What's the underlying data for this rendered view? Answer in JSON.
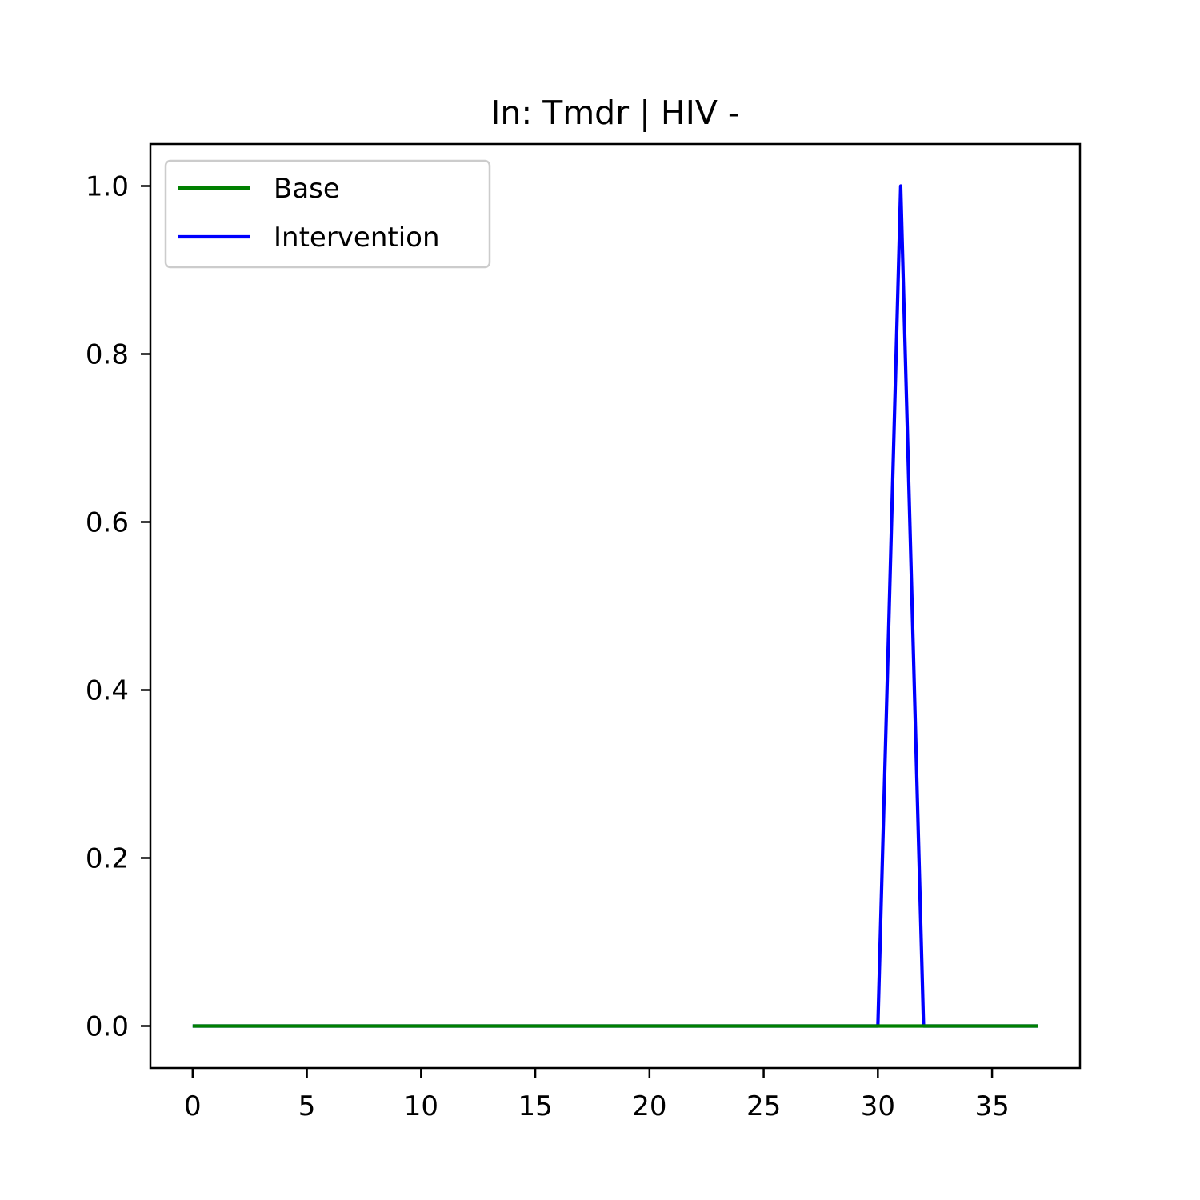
{
  "chart_data": {
    "type": "line",
    "title": "In: Tmdr | HIV -",
    "xlabel": "",
    "ylabel": "",
    "xlim": [
      -1.85,
      38.85
    ],
    "ylim": [
      -0.05,
      1.05
    ],
    "x_ticks": [
      0,
      5,
      10,
      15,
      20,
      25,
      30,
      35
    ],
    "x_tick_labels": [
      "0",
      "5",
      "10",
      "15",
      "20",
      "25",
      "30",
      "35"
    ],
    "y_ticks": [
      0.0,
      0.2,
      0.4,
      0.6,
      0.8,
      1.0
    ],
    "y_tick_labels": [
      "0.0",
      "0.2",
      "0.4",
      "0.6",
      "0.8",
      "1.0"
    ],
    "grid": false,
    "legend_position": "top-left",
    "series": [
      {
        "name": "Intervention",
        "color": "#0000ff",
        "x": [
          0,
          1,
          2,
          3,
          4,
          5,
          6,
          7,
          8,
          9,
          10,
          11,
          12,
          13,
          14,
          15,
          16,
          17,
          18,
          19,
          20,
          21,
          22,
          23,
          24,
          25,
          26,
          27,
          28,
          29,
          30,
          31,
          32,
          33,
          34,
          35,
          36,
          37
        ],
        "values": [
          0,
          0,
          0,
          0,
          0,
          0,
          0,
          0,
          0,
          0,
          0,
          0,
          0,
          0,
          0,
          0,
          0,
          0,
          0,
          0,
          0,
          0,
          0,
          0,
          0,
          0,
          0,
          0,
          0,
          0,
          0,
          1.0,
          0,
          0,
          0,
          0,
          0,
          0
        ]
      },
      {
        "name": "Base",
        "color": "#008000",
        "x": [
          0,
          1,
          2,
          3,
          4,
          5,
          6,
          7,
          8,
          9,
          10,
          11,
          12,
          13,
          14,
          15,
          16,
          17,
          18,
          19,
          20,
          21,
          22,
          23,
          24,
          25,
          26,
          27,
          28,
          29,
          30,
          31,
          32,
          33,
          34,
          35,
          36,
          37
        ],
        "values": [
          0,
          0,
          0,
          0,
          0,
          0,
          0,
          0,
          0,
          0,
          0,
          0,
          0,
          0,
          0,
          0,
          0,
          0,
          0,
          0,
          0,
          0,
          0,
          0,
          0,
          0,
          0,
          0,
          0,
          0,
          0,
          0,
          0,
          0,
          0,
          0,
          0,
          0
        ]
      }
    ],
    "legend_order": [
      "Base",
      "Intervention"
    ]
  }
}
